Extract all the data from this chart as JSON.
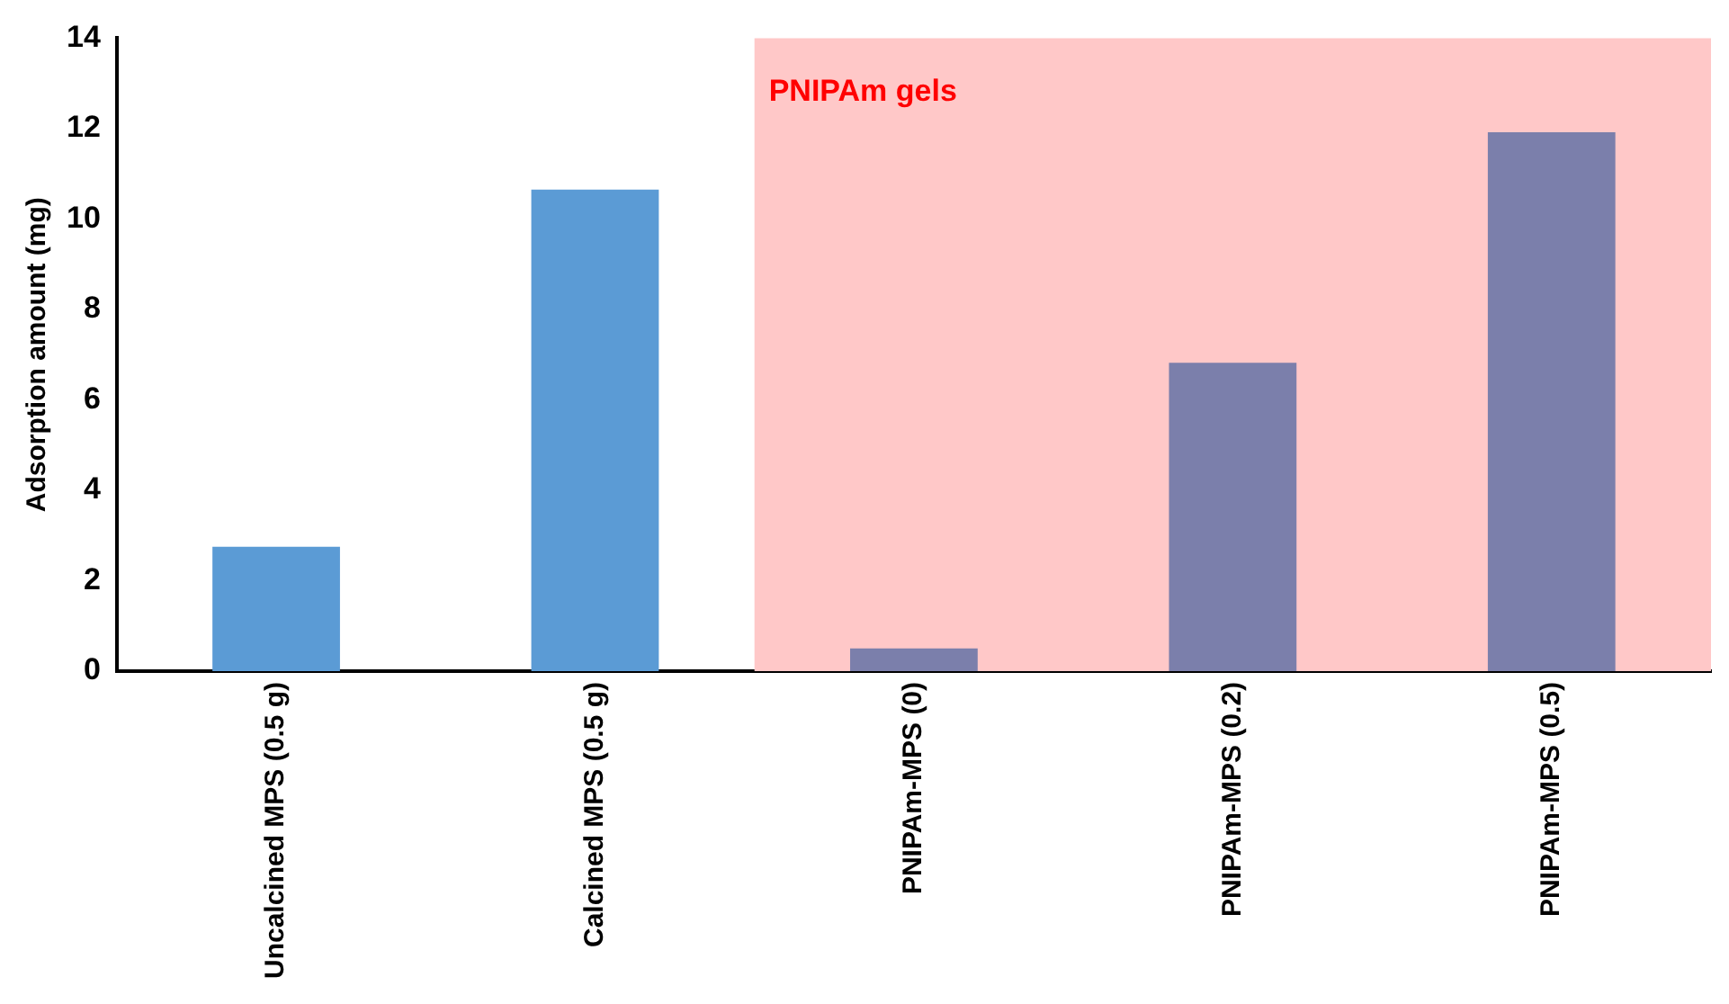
{
  "chart_data": {
    "type": "bar",
    "ylabel": "Adsorption amount (mg)",
    "categories": [
      "Uncalcined MPS (0.5 g)",
      "Calcined MPS (0.5 g)",
      "PNIPAm-MPS (0)",
      "PNIPAm-MPS (0.2)",
      "PNIPAm-MPS (0.5)"
    ],
    "values": [
      2.75,
      10.65,
      0.5,
      6.82,
      11.92
    ],
    "colors": [
      "#5b9bd5",
      "#5b9bd5",
      "#7b7fab",
      "#7b7fab",
      "#7b7fab"
    ],
    "ylim": [
      0,
      14
    ],
    "yticks": [
      0,
      2,
      4,
      6,
      8,
      10,
      12,
      14
    ],
    "grid": false,
    "legend": false,
    "bands": [
      {
        "axis": "x",
        "from": "PNIPAm-MPS (0)",
        "to": "PNIPAm-MPS (0.5)",
        "label": "PNIPAm gels",
        "color": "#ffc8c8"
      }
    ]
  }
}
